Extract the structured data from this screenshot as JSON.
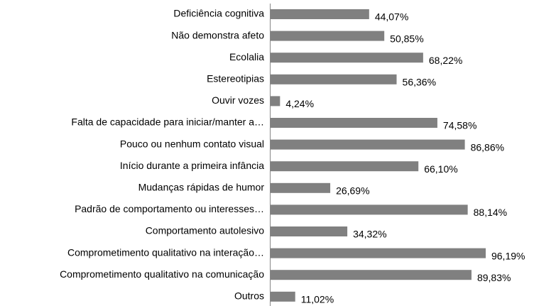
{
  "chart_data": {
    "type": "barh",
    "categories": [
      "Deficiência cognitiva",
      "Não demonstra afeto",
      "Ecolalia",
      "Estereotipias",
      "Ouvir vozes",
      "Falta de capacidade para iniciar/manter a…",
      "Pouco ou nenhum contato visual",
      "Início durante a primeira infância",
      "Mudanças rápidas de humor",
      "Padrão de comportamento ou interesses…",
      "Comportamento autolesivo",
      "Comprometimento qualitativo na interação…",
      "Comprometimento qualitativo na comunicação",
      "Outros"
    ],
    "values": [
      44.07,
      50.85,
      68.22,
      56.36,
      4.24,
      74.58,
      86.86,
      66.1,
      26.69,
      88.14,
      34.32,
      96.19,
      89.83,
      11.02
    ],
    "value_labels": [
      "44,07%",
      "50,85%",
      "68,22%",
      "56,36%",
      "4,24%",
      "74,58%",
      "86,86%",
      "66,10%",
      "26,69%",
      "88,14%",
      "34,32%",
      "96,19%",
      "89,83%",
      "11,02%"
    ],
    "color": "#808080"
  }
}
